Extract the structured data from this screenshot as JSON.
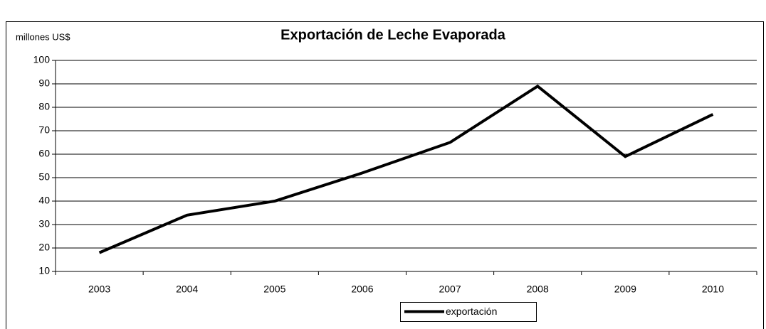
{
  "chart_data": {
    "type": "line",
    "title": "Exportación de Leche Evaporada",
    "y_label": "millones US$",
    "categories": [
      "2003",
      "2004",
      "2005",
      "2006",
      "2007",
      "2008",
      "2009",
      "2010"
    ],
    "series": [
      {
        "name": "exportación",
        "color": "#000000",
        "values": [
          18,
          34,
          40,
          52,
          65,
          89,
          59,
          77
        ]
      }
    ],
    "ylim": [
      10,
      100
    ],
    "yticks": [
      10,
      20,
      30,
      40,
      50,
      60,
      70,
      80,
      90,
      100
    ],
    "grid": true,
    "legend": "bottom"
  }
}
